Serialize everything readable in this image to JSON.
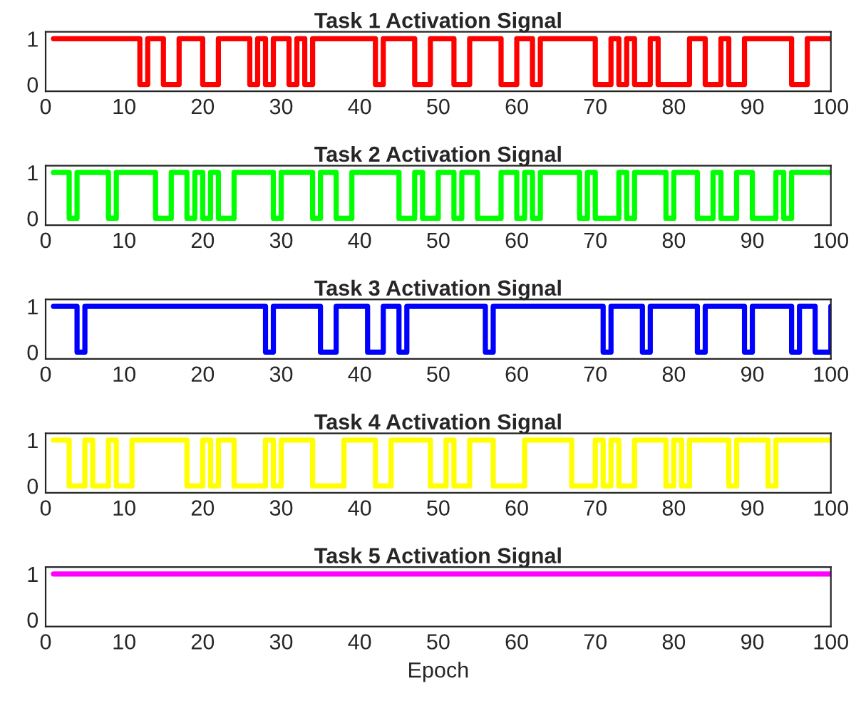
{
  "chart_data": [
    {
      "type": "step",
      "title": "Task 1 Activation Signal",
      "xlim": [
        0,
        100
      ],
      "xticks": [
        0,
        10,
        20,
        30,
        40,
        50,
        60,
        70,
        80,
        90,
        100
      ],
      "ylim": [
        -0.15,
        1.15
      ],
      "yticks": [
        0,
        1
      ],
      "grid": false,
      "legend": false,
      "x": [
        1,
        2,
        3,
        4,
        5,
        6,
        7,
        8,
        9,
        10,
        11,
        12,
        13,
        14,
        15,
        16,
        17,
        18,
        19,
        20,
        21,
        22,
        23,
        24,
        25,
        26,
        27,
        28,
        29,
        30,
        31,
        32,
        33,
        34,
        35,
        36,
        37,
        38,
        39,
        40,
        41,
        42,
        43,
        44,
        45,
        46,
        47,
        48,
        49,
        50,
        51,
        52,
        53,
        54,
        55,
        56,
        57,
        58,
        59,
        60,
        61,
        62,
        63,
        64,
        65,
        66,
        67,
        68,
        69,
        70,
        71,
        72,
        73,
        74,
        75,
        76,
        77,
        78,
        79,
        80,
        81,
        82,
        83,
        84,
        85,
        86,
        87,
        88,
        89,
        90,
        91,
        92,
        93,
        94,
        95,
        96,
        97,
        98,
        99,
        100
      ],
      "series": [
        {
          "color": "#ff0000",
          "values": [
            1,
            1,
            1,
            1,
            1,
            1,
            1,
            1,
            1,
            1,
            1,
            0,
            1,
            1,
            0,
            0,
            1,
            1,
            1,
            0,
            0,
            1,
            1,
            1,
            1,
            0,
            1,
            0,
            1,
            1,
            0,
            1,
            0,
            1,
            1,
            1,
            1,
            1,
            1,
            1,
            1,
            0,
            1,
            1,
            1,
            1,
            0,
            0,
            1,
            1,
            1,
            0,
            0,
            1,
            1,
            1,
            1,
            0,
            0,
            1,
            1,
            0,
            1,
            1,
            1,
            1,
            1,
            1,
            1,
            0,
            0,
            1,
            0,
            1,
            0,
            0,
            1,
            0,
            0,
            0,
            0,
            1,
            1,
            0,
            0,
            1,
            0,
            0,
            1,
            1,
            1,
            1,
            1,
            1,
            0,
            0,
            1,
            1,
            1,
            1
          ]
        }
      ]
    },
    {
      "type": "step",
      "title": "Task 2 Activation Signal",
      "xlim": [
        0,
        100
      ],
      "xticks": [
        0,
        10,
        20,
        30,
        40,
        50,
        60,
        70,
        80,
        90,
        100
      ],
      "ylim": [
        -0.15,
        1.15
      ],
      "yticks": [
        0,
        1
      ],
      "grid": false,
      "legend": false,
      "x": [
        1,
        2,
        3,
        4,
        5,
        6,
        7,
        8,
        9,
        10,
        11,
        12,
        13,
        14,
        15,
        16,
        17,
        18,
        19,
        20,
        21,
        22,
        23,
        24,
        25,
        26,
        27,
        28,
        29,
        30,
        31,
        32,
        33,
        34,
        35,
        36,
        37,
        38,
        39,
        40,
        41,
        42,
        43,
        44,
        45,
        46,
        47,
        48,
        49,
        50,
        51,
        52,
        53,
        54,
        55,
        56,
        57,
        58,
        59,
        60,
        61,
        62,
        63,
        64,
        65,
        66,
        67,
        68,
        69,
        70,
        71,
        72,
        73,
        74,
        75,
        76,
        77,
        78,
        79,
        80,
        81,
        82,
        83,
        84,
        85,
        86,
        87,
        88,
        89,
        90,
        91,
        92,
        93,
        94,
        95,
        96,
        97,
        98,
        99,
        100
      ],
      "series": [
        {
          "color": "#00ff00",
          "values": [
            1,
            1,
            0,
            1,
            1,
            1,
            1,
            0,
            1,
            1,
            1,
            1,
            1,
            0,
            0,
            1,
            1,
            0,
            1,
            0,
            1,
            0,
            0,
            1,
            1,
            1,
            1,
            1,
            0,
            1,
            1,
            1,
            1,
            0,
            1,
            1,
            0,
            0,
            1,
            1,
            1,
            1,
            1,
            1,
            0,
            0,
            1,
            0,
            0,
            1,
            1,
            0,
            1,
            1,
            0,
            0,
            0,
            1,
            1,
            0,
            1,
            0,
            1,
            1,
            1,
            1,
            1,
            0,
            1,
            0,
            0,
            0,
            1,
            0,
            1,
            1,
            1,
            1,
            0,
            1,
            1,
            1,
            0,
            0,
            1,
            0,
            0,
            1,
            1,
            0,
            0,
            0,
            1,
            0,
            1,
            1,
            1,
            1,
            1,
            1
          ]
        }
      ]
    },
    {
      "type": "step",
      "title": "Task 3 Activation Signal",
      "xlim": [
        0,
        100
      ],
      "xticks": [
        0,
        10,
        20,
        30,
        40,
        50,
        60,
        70,
        80,
        90,
        100
      ],
      "ylim": [
        -0.15,
        1.15
      ],
      "yticks": [
        0,
        1
      ],
      "grid": false,
      "legend": false,
      "x": [
        1,
        2,
        3,
        4,
        5,
        6,
        7,
        8,
        9,
        10,
        11,
        12,
        13,
        14,
        15,
        16,
        17,
        18,
        19,
        20,
        21,
        22,
        23,
        24,
        25,
        26,
        27,
        28,
        29,
        30,
        31,
        32,
        33,
        34,
        35,
        36,
        37,
        38,
        39,
        40,
        41,
        42,
        43,
        44,
        45,
        46,
        47,
        48,
        49,
        50,
        51,
        52,
        53,
        54,
        55,
        56,
        57,
        58,
        59,
        60,
        61,
        62,
        63,
        64,
        65,
        66,
        67,
        68,
        69,
        70,
        71,
        72,
        73,
        74,
        75,
        76,
        77,
        78,
        79,
        80,
        81,
        82,
        83,
        84,
        85,
        86,
        87,
        88,
        89,
        90,
        91,
        92,
        93,
        94,
        95,
        96,
        97,
        98,
        99,
        100
      ],
      "series": [
        {
          "color": "#0000ff",
          "values": [
            1,
            1,
            1,
            0,
            1,
            1,
            1,
            1,
            1,
            1,
            1,
            1,
            1,
            1,
            1,
            1,
            1,
            1,
            1,
            1,
            1,
            1,
            1,
            1,
            1,
            1,
            1,
            0,
            1,
            1,
            1,
            1,
            1,
            1,
            0,
            0,
            1,
            1,
            1,
            1,
            0,
            0,
            1,
            1,
            0,
            1,
            1,
            1,
            1,
            1,
            1,
            1,
            1,
            1,
            1,
            0,
            1,
            1,
            1,
            1,
            1,
            1,
            1,
            1,
            1,
            1,
            1,
            1,
            1,
            1,
            0,
            1,
            1,
            1,
            1,
            0,
            1,
            1,
            1,
            1,
            1,
            1,
            0,
            1,
            1,
            1,
            1,
            1,
            0,
            1,
            1,
            1,
            1,
            1,
            0,
            1,
            1,
            0,
            0,
            1
          ]
        }
      ]
    },
    {
      "type": "step",
      "title": "Task 4 Activation Signal",
      "xlim": [
        0,
        100
      ],
      "xticks": [
        0,
        10,
        20,
        30,
        40,
        50,
        60,
        70,
        80,
        90,
        100
      ],
      "ylim": [
        -0.15,
        1.15
      ],
      "yticks": [
        0,
        1
      ],
      "grid": false,
      "legend": false,
      "x": [
        1,
        2,
        3,
        4,
        5,
        6,
        7,
        8,
        9,
        10,
        11,
        12,
        13,
        14,
        15,
        16,
        17,
        18,
        19,
        20,
        21,
        22,
        23,
        24,
        25,
        26,
        27,
        28,
        29,
        30,
        31,
        32,
        33,
        34,
        35,
        36,
        37,
        38,
        39,
        40,
        41,
        42,
        43,
        44,
        45,
        46,
        47,
        48,
        49,
        50,
        51,
        52,
        53,
        54,
        55,
        56,
        57,
        58,
        59,
        60,
        61,
        62,
        63,
        64,
        65,
        66,
        67,
        68,
        69,
        70,
        71,
        72,
        73,
        74,
        75,
        76,
        77,
        78,
        79,
        80,
        81,
        82,
        83,
        84,
        85,
        86,
        87,
        88,
        89,
        90,
        91,
        92,
        93,
        94,
        95,
        96,
        97,
        98,
        99,
        100
      ],
      "series": [
        {
          "color": "#ffff00",
          "values": [
            1,
            1,
            0,
            0,
            1,
            0,
            0,
            1,
            0,
            0,
            1,
            1,
            1,
            1,
            1,
            1,
            1,
            0,
            0,
            1,
            0,
            1,
            1,
            0,
            0,
            0,
            0,
            1,
            0,
            1,
            1,
            1,
            1,
            0,
            0,
            0,
            0,
            1,
            1,
            1,
            1,
            0,
            0,
            1,
            1,
            1,
            1,
            1,
            0,
            0,
            1,
            0,
            0,
            1,
            1,
            1,
            0,
            0,
            0,
            0,
            1,
            1,
            1,
            1,
            1,
            1,
            0,
            0,
            0,
            1,
            0,
            1,
            0,
            0,
            1,
            1,
            1,
            1,
            0,
            1,
            0,
            1,
            1,
            1,
            1,
            1,
            0,
            1,
            1,
            1,
            1,
            0,
            1,
            1,
            1,
            1,
            1,
            1,
            1,
            1
          ]
        }
      ]
    },
    {
      "type": "step",
      "title": "Task 5 Activation Signal",
      "xlabel": "Epoch",
      "xlim": [
        0,
        100
      ],
      "xticks": [
        0,
        10,
        20,
        30,
        40,
        50,
        60,
        70,
        80,
        90,
        100
      ],
      "ylim": [
        -0.15,
        1.15
      ],
      "yticks": [
        0,
        1
      ],
      "grid": false,
      "legend": false,
      "x": [
        1,
        2,
        3,
        4,
        5,
        6,
        7,
        8,
        9,
        10,
        11,
        12,
        13,
        14,
        15,
        16,
        17,
        18,
        19,
        20,
        21,
        22,
        23,
        24,
        25,
        26,
        27,
        28,
        29,
        30,
        31,
        32,
        33,
        34,
        35,
        36,
        37,
        38,
        39,
        40,
        41,
        42,
        43,
        44,
        45,
        46,
        47,
        48,
        49,
        50,
        51,
        52,
        53,
        54,
        55,
        56,
        57,
        58,
        59,
        60,
        61,
        62,
        63,
        64,
        65,
        66,
        67,
        68,
        69,
        70,
        71,
        72,
        73,
        74,
        75,
        76,
        77,
        78,
        79,
        80,
        81,
        82,
        83,
        84,
        85,
        86,
        87,
        88,
        89,
        90,
        91,
        92,
        93,
        94,
        95,
        96,
        97,
        98,
        99,
        100
      ],
      "series": [
        {
          "color": "#ff00ff",
          "values": [
            1,
            1,
            1,
            1,
            1,
            1,
            1,
            1,
            1,
            1,
            1,
            1,
            1,
            1,
            1,
            1,
            1,
            1,
            1,
            1,
            1,
            1,
            1,
            1,
            1,
            1,
            1,
            1,
            1,
            1,
            1,
            1,
            1,
            1,
            1,
            1,
            1,
            1,
            1,
            1,
            1,
            1,
            1,
            1,
            1,
            1,
            1,
            1,
            1,
            1,
            1,
            1,
            1,
            1,
            1,
            1,
            1,
            1,
            1,
            1,
            1,
            1,
            1,
            1,
            1,
            1,
            1,
            1,
            1,
            1,
            1,
            1,
            1,
            1,
            1,
            1,
            1,
            1,
            1,
            1,
            1,
            1,
            1,
            1,
            1,
            1,
            1,
            1,
            1,
            1,
            1,
            1,
            1,
            1,
            1,
            1,
            1,
            1,
            1,
            1
          ]
        }
      ]
    }
  ]
}
